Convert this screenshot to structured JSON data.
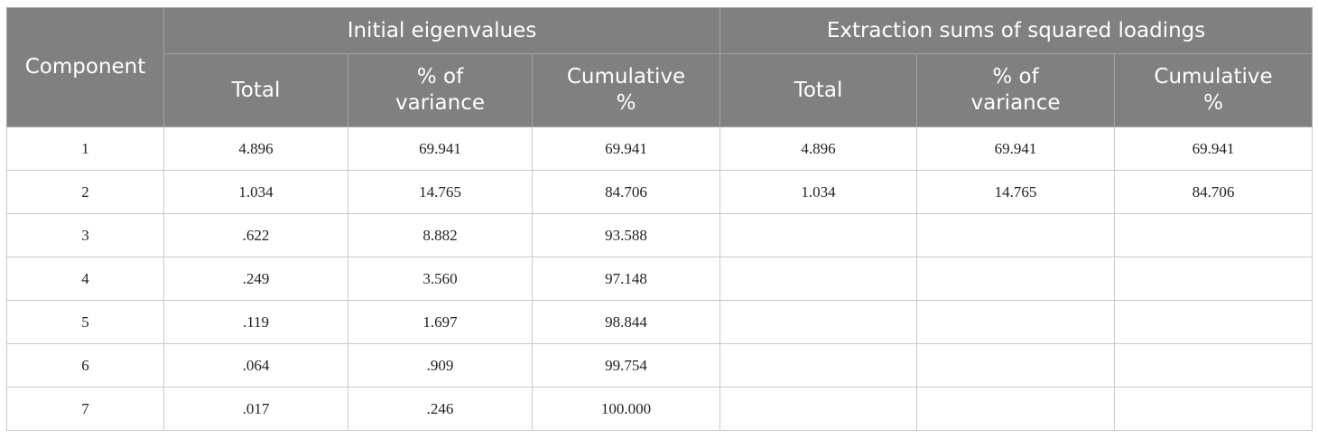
{
  "header": {
    "component": "Component",
    "initial_group": "Initial eigenvalues",
    "extraction_group": "Extraction sums of squared loadings",
    "subheaders": [
      "Total",
      "% of variance",
      "Cumulative %",
      "Total",
      "% of variance",
      "Cumulative %"
    ]
  },
  "rows": [
    [
      "1",
      "4.896",
      "69.941",
      "69.941",
      "4.896",
      "69.941",
      "69.941"
    ],
    [
      "2",
      "1.034",
      "14.765",
      "84.706",
      "1.034",
      "14.765",
      "84.706"
    ],
    [
      "3",
      ".622",
      "8.882",
      "93.588",
      "",
      "",
      ""
    ],
    [
      "4",
      ".249",
      "3.560",
      "97.148",
      "",
      "",
      ""
    ],
    [
      "5",
      ".119",
      "1.697",
      "98.844",
      "",
      "",
      ""
    ],
    [
      "6",
      ".064",
      ".909",
      "99.754",
      "",
      "",
      ""
    ],
    [
      "7",
      ".017",
      ".246",
      "100.000",
      "",
      "",
      ""
    ]
  ]
}
